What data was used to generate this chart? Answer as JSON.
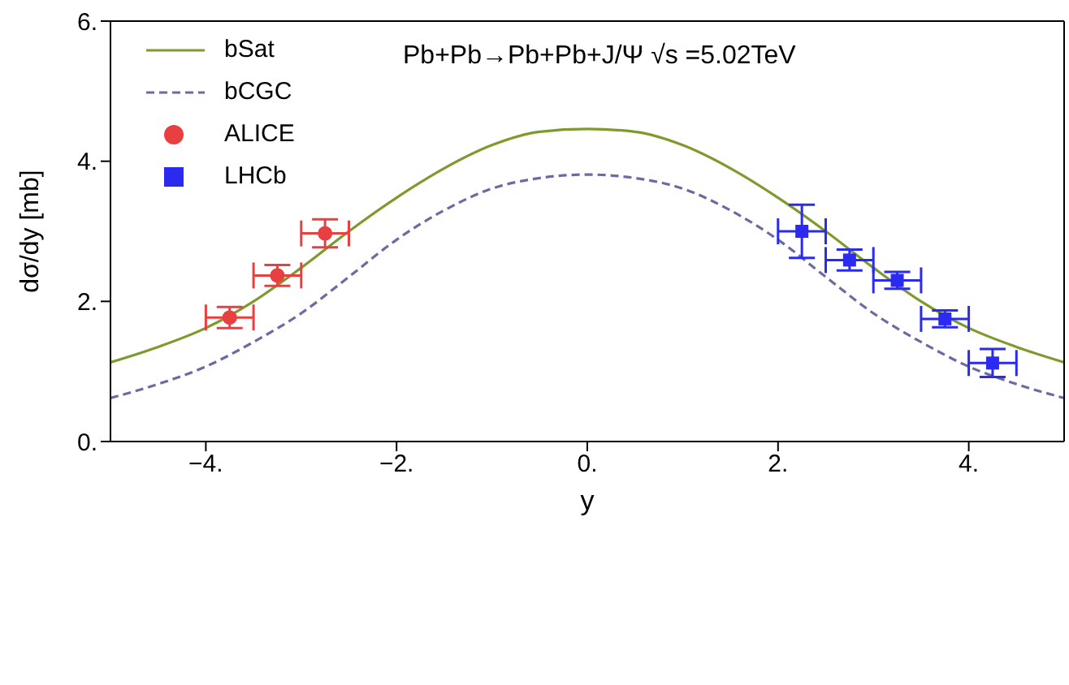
{
  "chart_data": {
    "type": "line",
    "xlabel": "y",
    "ylabel": "dσ/dy  [mb]",
    "annotations": [
      "Pb+Pb→Pb+Pb+J/Ψ  √s =5.02TeV"
    ],
    "xlim": [
      -5,
      5
    ],
    "ylim": [
      0,
      6
    ],
    "xticks": [
      {
        "value": -4,
        "label": "−4."
      },
      {
        "value": -2,
        "label": "−2."
      },
      {
        "value": 0,
        "label": "0."
      },
      {
        "value": 2,
        "label": "2."
      },
      {
        "value": 4,
        "label": "4."
      }
    ],
    "yticks": [
      {
        "value": 0,
        "label": "0."
      },
      {
        "value": 2,
        "label": "2."
      },
      {
        "value": 4,
        "label": "4."
      },
      {
        "value": 6,
        "label": "6."
      }
    ],
    "legend": "top left",
    "series": [
      {
        "name": "bSat",
        "color": "#7f9a2c",
        "line_style": "solid",
        "marker": "none",
        "x": [
          -5,
          -4.5,
          -4,
          -3.5,
          -3,
          -2.5,
          -2,
          -1.5,
          -1,
          -0.5,
          0,
          0.5,
          1,
          1.5,
          2,
          2.5,
          3,
          3.5,
          4,
          4.5,
          5
        ],
        "values": [
          1.13,
          1.35,
          1.62,
          2.0,
          2.48,
          3.0,
          3.48,
          3.9,
          4.23,
          4.42,
          4.46,
          4.42,
          4.23,
          3.9,
          3.48,
          3.0,
          2.48,
          2.0,
          1.62,
          1.35,
          1.13
        ]
      },
      {
        "name": "bCGC",
        "color": "#6b6ba3",
        "line_style": "dashed",
        "marker": "none",
        "x": [
          -5,
          -4.5,
          -4,
          -3.5,
          -3,
          -2.5,
          -2,
          -1.5,
          -1,
          -0.5,
          0,
          0.5,
          1,
          1.5,
          2,
          2.5,
          3,
          3.5,
          4,
          4.5,
          5
        ],
        "values": [
          0.62,
          0.82,
          1.07,
          1.42,
          1.83,
          2.35,
          2.88,
          3.3,
          3.61,
          3.76,
          3.81,
          3.76,
          3.61,
          3.3,
          2.88,
          2.35,
          1.83,
          1.42,
          1.07,
          0.82,
          0.62
        ]
      },
      {
        "name": "ALICE",
        "type": "scatter",
        "color": "#e84040",
        "marker": "circle",
        "x": [
          -3.75,
          -3.25,
          -2.75
        ],
        "values": [
          1.77,
          2.37,
          2.97
        ],
        "errors": [
          0.15,
          0.15,
          0.2
        ],
        "xerrors": [
          0.25,
          0.25,
          0.25
        ]
      },
      {
        "name": "LHCb",
        "type": "scatter",
        "color": "#2b2bf0",
        "marker": "square",
        "x": [
          2.25,
          2.75,
          3.25,
          3.75,
          4.25
        ],
        "values": [
          3.0,
          2.59,
          2.3,
          1.75,
          1.12
        ],
        "errors": [
          0.38,
          0.15,
          0.12,
          0.12,
          0.2
        ],
        "xerrors": [
          0.25,
          0.25,
          0.25,
          0.25,
          0.25
        ]
      }
    ]
  }
}
